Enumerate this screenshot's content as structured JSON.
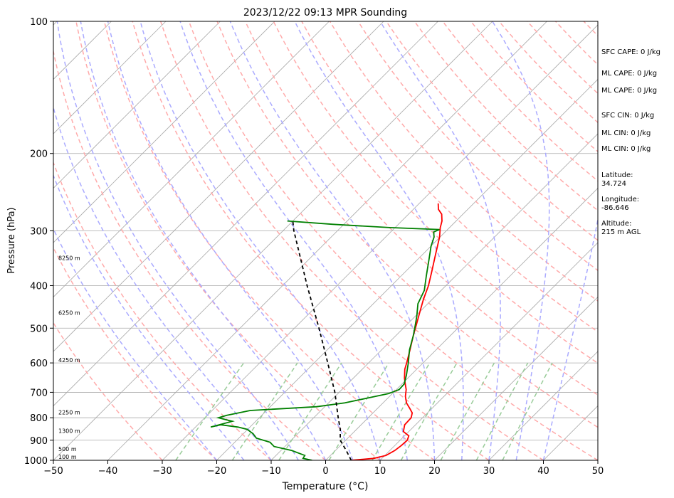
{
  "chart_data": {
    "type": "skew-t",
    "title": "2023/12/22 09:13 MPR Sounding",
    "xlabel": "Temperature (°C)",
    "ylabel": "Pressure (hPa)",
    "xlim": [
      -50,
      50
    ],
    "ylim": [
      1000,
      100
    ],
    "y_scale": "log",
    "x_ticks": [
      -50,
      -40,
      -30,
      -20,
      -10,
      0,
      10,
      20,
      30,
      40,
      50
    ],
    "y_ticks": [
      1000,
      900,
      800,
      700,
      600,
      500,
      400,
      300,
      200,
      100
    ],
    "height_labels": [
      {
        "text": "100 m",
        "p": 985
      },
      {
        "text": "500 m",
        "p": 945
      },
      {
        "text": "1300 m",
        "p": 860
      },
      {
        "text": "2250 m",
        "p": 780
      },
      {
        "text": "4250 m",
        "p": 593
      },
      {
        "text": "6250 m",
        "p": 463
      },
      {
        "text": "8250 m",
        "p": 347
      }
    ],
    "series": [
      {
        "color": "#ff0000",
        "points": [
          [
            1000,
            4.7
          ],
          [
            990,
            8.5
          ],
          [
            975,
            10.2
          ],
          [
            950,
            10.9
          ],
          [
            925,
            11.2
          ],
          [
            900,
            11.3
          ],
          [
            880,
            10.8
          ],
          [
            860,
            9.0
          ],
          [
            830,
            8.0
          ],
          [
            800,
            7.9
          ],
          [
            780,
            7.2
          ],
          [
            760,
            5.8
          ],
          [
            740,
            4.3
          ],
          [
            715,
            2.9
          ],
          [
            690,
            1.8
          ],
          [
            670,
            0.6
          ],
          [
            650,
            -0.6
          ],
          [
            620,
            -2.2
          ],
          [
            600,
            -3.0
          ],
          [
            560,
            -4.8
          ],
          [
            520,
            -6.8
          ],
          [
            490,
            -8.3
          ],
          [
            460,
            -9.9
          ],
          [
            430,
            -11.6
          ],
          [
            400,
            -13.2
          ],
          [
            370,
            -15.3
          ],
          [
            340,
            -17.6
          ],
          [
            310,
            -20.1
          ],
          [
            295,
            -21.7
          ],
          [
            285,
            -22.6
          ],
          [
            275,
            -23.9
          ],
          [
            268,
            -25.4
          ],
          [
            260,
            -26.5
          ]
        ]
      },
      {
        "color": "#008000",
        "points": [
          [
            1000,
            -2.5
          ],
          [
            990,
            -4.5
          ],
          [
            975,
            -4.7
          ],
          [
            950,
            -8.0
          ],
          [
            930,
            -12.0
          ],
          [
            910,
            -13.5
          ],
          [
            890,
            -16.8
          ],
          [
            870,
            -18.2
          ],
          [
            850,
            -20.1
          ],
          [
            840,
            -22.2
          ],
          [
            830,
            -25.8
          ],
          [
            840,
            -27.2
          ],
          [
            815,
            -24.3
          ],
          [
            800,
            -27.5
          ],
          [
            790,
            -26.4
          ],
          [
            770,
            -23.0
          ],
          [
            755,
            -11.5
          ],
          [
            740,
            -7.0
          ],
          [
            720,
            -3.5
          ],
          [
            705,
            -0.7
          ],
          [
            690,
            0.5
          ],
          [
            670,
            0.4
          ],
          [
            640,
            -0.8
          ],
          [
            600,
            -2.7
          ],
          [
            560,
            -4.9
          ],
          [
            520,
            -6.8
          ],
          [
            495,
            -8.2
          ],
          [
            470,
            -9.7
          ],
          [
            440,
            -11.8
          ],
          [
            410,
            -13.1
          ],
          [
            380,
            -15.4
          ],
          [
            350,
            -17.8
          ],
          [
            325,
            -20.0
          ],
          [
            310,
            -21.1
          ],
          [
            302,
            -22.1
          ],
          [
            298,
            -21.5
          ],
          [
            295,
            -31.0
          ],
          [
            290,
            -42.0
          ],
          [
            285,
            -51.0
          ]
        ]
      },
      {
        "color": "#000000",
        "style": "dashed",
        "points": [
          [
            1000,
            4.7
          ],
          [
            950,
            2.0
          ],
          [
            900,
            -1.0
          ],
          [
            850,
            -3.0
          ],
          [
            800,
            -5.5
          ],
          [
            700,
            -10.8
          ],
          [
            600,
            -17.5
          ],
          [
            500,
            -25.5
          ],
          [
            400,
            -35.5
          ],
          [
            300,
            -48.0
          ],
          [
            285,
            -50.0
          ]
        ]
      }
    ],
    "annotations": [
      {
        "text": "SFC CAPE: 0 J/kg",
        "p": 118
      },
      {
        "text": "ML CAPE: 0 J/kg",
        "p": 132
      },
      {
        "text": "ML CAPE: 0 J/kg",
        "p": 144
      },
      {
        "text": "SFC CIN: 0 J/kg",
        "p": 164
      },
      {
        "text": "ML CIN: 0 J/kg",
        "p": 180
      },
      {
        "text": "ML CIN: 0 J/kg",
        "p": 196
      },
      {
        "text": "Latitude:\n34.724",
        "p": 225
      },
      {
        "text": "Longitude:\n-86.646",
        "p": 255
      },
      {
        "text": "Altitude:\n215 m AGL",
        "p": 290
      }
    ],
    "grid": true,
    "background_lines": [
      "isotherms",
      "dry adiabats",
      "moist adiabats",
      "mixing ratio lines"
    ],
    "colors": {
      "isotherm": "#aaaaaa",
      "dry_adiabat": "#ffaaaa",
      "moist_adiabat": "#aaaaff",
      "mixing_ratio": "#99cc99",
      "height_marker": "#cc66cc"
    }
  }
}
